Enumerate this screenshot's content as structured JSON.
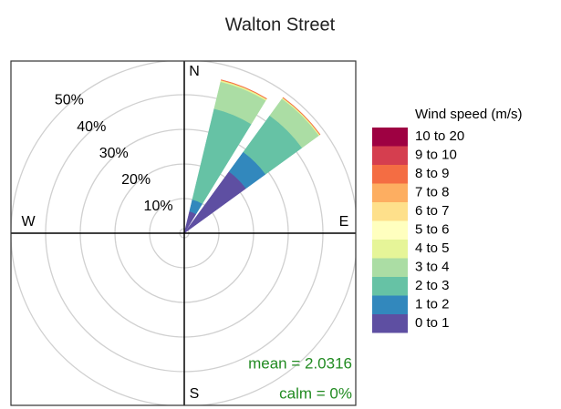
{
  "chart_data": {
    "type": "windrose",
    "title": "Walton Street",
    "x": [
      22.5,
      45,
      90
    ],
    "series": [
      {
        "name": "0 to 1",
        "color": "#5e4fa2",
        "values": [
          6.5,
          22,
          0.6
        ]
      },
      {
        "name": "1 to 2",
        "color": "#3288bd",
        "values": [
          3.5,
          7,
          0
        ]
      },
      {
        "name": "2 to 3",
        "color": "#66c2a5",
        "values": [
          27,
          13,
          0
        ]
      },
      {
        "name": "3 to 4",
        "color": "#abdda4",
        "values": [
          8,
          6,
          0
        ]
      },
      {
        "name": "4 to 5",
        "color": "#e6f598",
        "values": [
          0.4,
          0.3,
          0
        ]
      },
      {
        "name": "5 to 6",
        "color": "#ffffbf",
        "values": [
          0,
          0,
          0
        ]
      },
      {
        "name": "6 to 7",
        "color": "#fee08b",
        "values": [
          0,
          0,
          0
        ]
      },
      {
        "name": "7 to 8",
        "color": "#fdae61",
        "values": [
          0.1,
          0.1,
          0
        ]
      },
      {
        "name": "8 to 9",
        "color": "#f46d43",
        "values": [
          0.1,
          0.1,
          0
        ]
      },
      {
        "name": "9 to 10",
        "color": "#d53e4f",
        "values": [
          0,
          0,
          0
        ]
      },
      {
        "name": "10 to 20",
        "color": "#9e0142",
        "values": [
          0,
          0,
          0
        ]
      }
    ],
    "legend_title": "Wind speed (m/s)",
    "rlim": [
      0,
      50
    ],
    "rticks": [
      {
        "value": 10,
        "label": "10%"
      },
      {
        "value": 20,
        "label": "20%"
      },
      {
        "value": 30,
        "label": "30%"
      },
      {
        "value": 40,
        "label": "40%"
      },
      {
        "value": 50,
        "label": "50%"
      }
    ],
    "compass": [
      "N",
      "E",
      "S",
      "W"
    ],
    "annotations": [
      "mean = 2.0316",
      "calm = 0%"
    ]
  }
}
